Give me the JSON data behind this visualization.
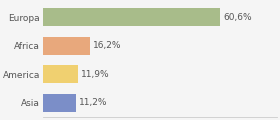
{
  "categories": [
    "Europa",
    "Africa",
    "America",
    "Asia"
  ],
  "values": [
    60.6,
    16.2,
    11.9,
    11.2
  ],
  "labels": [
    "60,6%",
    "16,2%",
    "11,9%",
    "11,2%"
  ],
  "bar_colors": [
    "#a8bc8a",
    "#e8a87c",
    "#f0d070",
    "#7b8ec8"
  ],
  "background_color": "#f5f5f5",
  "xlim": [
    0,
    80
  ],
  "bar_height": 0.62,
  "label_fontsize": 6.5,
  "tick_fontsize": 6.5,
  "grid_color": "#dddddd",
  "spine_color": "#cccccc",
  "text_color": "#555555"
}
